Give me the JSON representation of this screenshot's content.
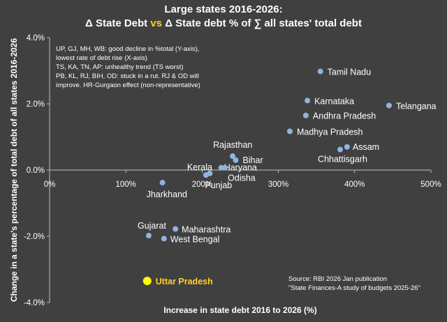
{
  "chart_data": {
    "type": "scatter",
    "title": "Large states 2016-2026:",
    "subtitle_parts": [
      "Δ State Debt ",
      "vs",
      " Δ State debt % of ∑ all states' total debt"
    ],
    "xlabel": "Increase in state debt 2016 to 2026 (%)",
    "ylabel": "Change in a state's percentage of total debt of all states 2016-2026",
    "xlim": [
      0,
      500
    ],
    "ylim": [
      -4.0,
      4.0
    ],
    "x_ticks": [
      0,
      100,
      200,
      300,
      400,
      500
    ],
    "x_tick_labels": [
      "0%",
      "100%",
      "200%",
      "300%",
      "400%",
      "500%"
    ],
    "y_ticks": [
      4.0,
      2.0,
      0.0,
      -2.0,
      -4.0
    ],
    "y_tick_labels": [
      "4.0%",
      "2.0%",
      "0.0%",
      "-2.0%",
      "-4.0%"
    ],
    "grid": false,
    "colors": {
      "background": "#404040",
      "point": "#8eb4e3",
      "highlight": "#ffff00",
      "axis": "#bfbfbf",
      "accent": "#ffd21f"
    },
    "points": [
      {
        "name": "Tamil Nadu",
        "x": 355,
        "y": 2.98
      },
      {
        "name": "Karnataka",
        "x": 338,
        "y": 2.1
      },
      {
        "name": "Telangana",
        "x": 445,
        "y": 1.95
      },
      {
        "name": "Andhra Pradesh",
        "x": 336,
        "y": 1.65
      },
      {
        "name": "Madhya Pradesh",
        "x": 315,
        "y": 1.17
      },
      {
        "name": "Assam",
        "x": 390,
        "y": 0.7
      },
      {
        "name": "Chhattisgarh",
        "x": 381,
        "y": 0.62
      },
      {
        "name": "Rajasthan",
        "x": 240,
        "y": 0.42
      },
      {
        "name": "Bihar",
        "x": 244,
        "y": 0.3
      },
      {
        "name": "Kerala",
        "x": 205,
        "y": -0.15
      },
      {
        "name": "Punjab",
        "x": 210,
        "y": -0.1
      },
      {
        "name": "Haryana",
        "x": 225,
        "y": 0.07
      },
      {
        "name": "Odisha",
        "x": 230,
        "y": 0.07
      },
      {
        "name": "Jharkhand",
        "x": 148,
        "y": -0.38
      },
      {
        "name": "Maharashtra",
        "x": 165,
        "y": -1.78
      },
      {
        "name": "Gujarat",
        "x": 130,
        "y": -1.98
      },
      {
        "name": "West Bengal",
        "x": 150,
        "y": -2.07
      },
      {
        "name": "Uttar Pradesh",
        "x": 128,
        "y": -3.35,
        "highlight": true
      }
    ],
    "annotations": {
      "note_lines": [
        "UP, GJ, MH, WB: good decline in %total (Y-axis),",
        "lowest rate of debt rise (X-axis)",
        "TS, KA, TN, AP: unhealthy trend (TS worst)",
        "PB, KL, RJ, BIH, OD: stuck in a rut. RJ & OD will",
        "improve. HR-Gurgaon effect (non-representative)"
      ],
      "source_lines": [
        "Source: RBI 2026 Jan publication",
        "\"State Finances-A study of budgets 2025-26\""
      ]
    }
  }
}
